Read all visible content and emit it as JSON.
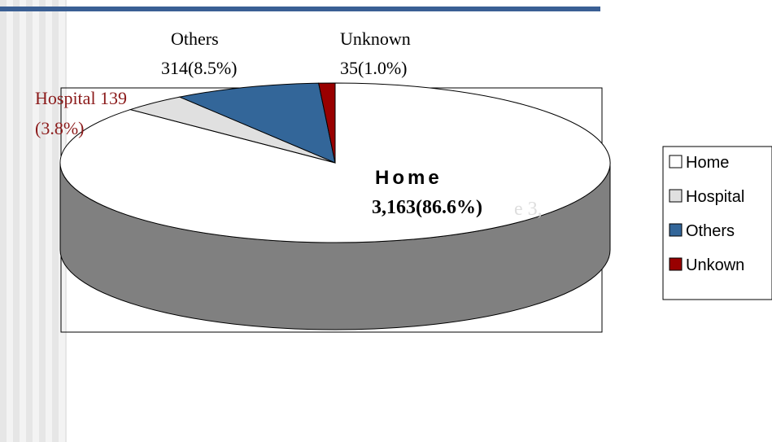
{
  "colors": {
    "top_bar": "#3a5f94",
    "stripe_light": "#f3f3f3",
    "stripe_dark": "#e6e6e6",
    "pie_side": "#808080",
    "home": "#ffffff",
    "hospital": "#e0e0e0",
    "others": "#336699",
    "unknown": "#990000",
    "hospital_label": "#8b1a1a"
  },
  "chart_data": {
    "type": "pie",
    "style": "3d",
    "title": "",
    "legend_position": "right",
    "slices": [
      {
        "name": "Home",
        "value": 3163,
        "percent": 86.6
      },
      {
        "name": "Hospital",
        "value": 139,
        "percent": 3.8
      },
      {
        "name": "Others",
        "value": 314,
        "percent": 8.5
      },
      {
        "name": "Unknown",
        "value": 35,
        "percent": 1.0
      }
    ],
    "labels": {
      "others_line1": "Others",
      "others_line2": "314(8.5%)",
      "unknown_line1": "Unknown",
      "unknown_line2": "35(1.0%)",
      "hospital_line1": "Hospital 139",
      "hospital_line2": "(3.8%)",
      "home_line1": "Home",
      "home_line2": "3,163(86.6%)",
      "home_ghost": "e 3,"
    },
    "legend": [
      "Home",
      "Hospital",
      "Others",
      "Unkown"
    ]
  }
}
